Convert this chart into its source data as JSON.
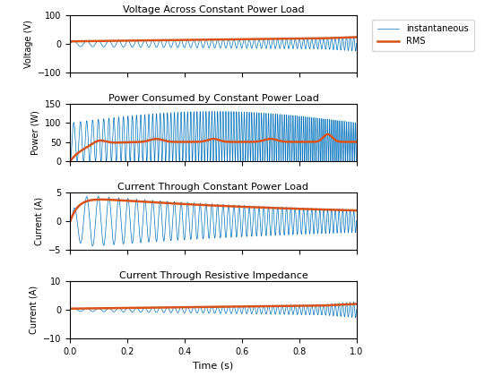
{
  "title1": "Voltage Across Constant Power Load",
  "title2": "Power Consumed by Constant Power Load",
  "title3": "Current Through Constant Power Load",
  "title4": "Current Through Resistive Impedance",
  "ylabel1": "Voltage (V)",
  "ylabel2": "Power (W)",
  "ylabel3": "Current (A)",
  "ylabel4": "Current (A)",
  "xlabel": "Time (s)",
  "legend_labels": [
    "instantaneous",
    "RMS"
  ],
  "inst_color": "#0072BD",
  "rms_color": "#D95319",
  "xlim": [
    0,
    1
  ],
  "ylim1": [
    -100,
    100
  ],
  "ylim2": [
    0,
    150
  ],
  "ylim3": [
    -5,
    5
  ],
  "ylim4": [
    -10,
    10
  ],
  "yticks1": [
    -100,
    0,
    100
  ],
  "yticks2": [
    0,
    50,
    100,
    150
  ],
  "yticks3": [
    -5,
    0,
    5
  ],
  "yticks4": [
    -10,
    0,
    10
  ],
  "xticks": [
    0,
    0.2,
    0.4,
    0.6,
    0.8,
    1.0
  ],
  "inst_lw": 0.5,
  "rms_lw": 1.8,
  "figsize": [
    5.6,
    4.2
  ],
  "dpi": 100
}
